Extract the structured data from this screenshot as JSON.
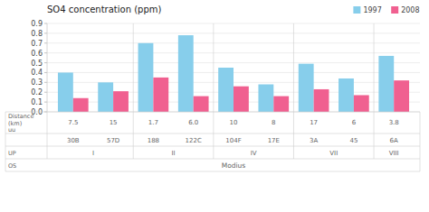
{
  "chart_data": {
    "type": "bar",
    "title": "SO4 concentration (ppm)",
    "categories": [
      "30B",
      "57D",
      "188",
      "122C",
      "104F",
      "17E",
      "3A",
      "45",
      "6A"
    ],
    "series": [
      {
        "name": "1997",
        "color": "#87CEEB",
        "values": [
          0.4,
          0.3,
          0.7,
          0.78,
          0.45,
          0.28,
          0.49,
          0.34,
          0.57
        ]
      },
      {
        "name": "2008",
        "color": "#F06090",
        "values": [
          0.14,
          0.21,
          0.35,
          0.16,
          0.26,
          0.16,
          0.23,
          0.17,
          0.32
        ]
      }
    ],
    "ylim": [
      0,
      0.9
    ],
    "yticks": [
      {
        "value": 0,
        "label": "0.0"
      },
      0.1,
      0.2,
      0.3,
      0.4,
      0.5,
      0.6,
      0.7,
      0.8,
      0.9
    ],
    "grid": true,
    "legend": "upper right",
    "distance_labels": [
      "7.5",
      "15",
      "1.7",
      "6.0",
      "10",
      "8",
      "17",
      "6",
      "3.8"
    ],
    "up_groups": [
      {
        "label": "I",
        "from": 0,
        "to": 1
      },
      {
        "label": "II",
        "from": 2,
        "to": 3
      },
      {
        "label": "IV",
        "from": 4,
        "to": 5
      },
      {
        "label": "VII",
        "from": 6,
        "to": 7
      },
      {
        "label": "VIII",
        "from": 8,
        "to": 8
      }
    ],
    "os_groups": [
      {
        "label": "Modius",
        "from": 0,
        "to": 8
      }
    ],
    "row_labels": {
      "distance": [
        "Distance",
        "(km)",
        "uu"
      ],
      "up": "UP",
      "os": "OS"
    }
  }
}
